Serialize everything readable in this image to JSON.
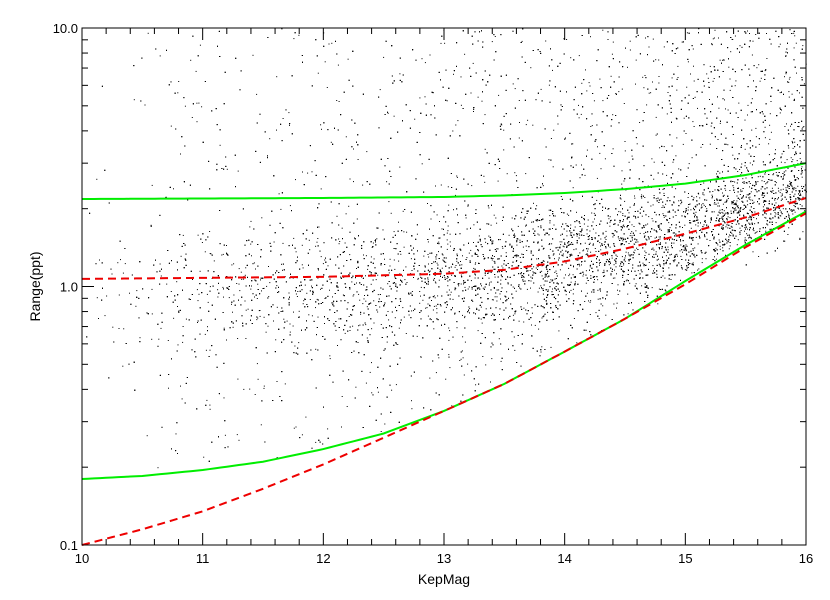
{
  "chart_data": {
    "type": "scatter",
    "title": "",
    "xlabel": "KepMag",
    "ylabel": "Range(ppt)",
    "xlim": [
      10,
      16
    ],
    "ylim": [
      0.1,
      10.0
    ],
    "yscale": "log",
    "grid": false,
    "legend": "none",
    "x_ticks": [
      10,
      11,
      12,
      13,
      14,
      15,
      16
    ],
    "x_tick_labels": [
      "10",
      "11",
      "12",
      "13",
      "14",
      "15",
      "16"
    ],
    "y_ticks": [
      0.1,
      1.0,
      10.0
    ],
    "y_tick_labels": [
      "0.1",
      "1.0",
      "10.0"
    ],
    "point_color": "#000000",
    "curves": [
      {
        "style": "solid",
        "color": "#00ee00",
        "x": [
          10,
          11,
          12,
          13,
          13.5,
          14,
          14.5,
          15,
          15.5,
          16
        ],
        "y": [
          2.18,
          2.19,
          2.2,
          2.22,
          2.25,
          2.3,
          2.38,
          2.5,
          2.7,
          3.0
        ]
      },
      {
        "style": "dashed",
        "color": "#ee0000",
        "x": [
          10,
          11,
          12,
          13,
          13.5,
          14,
          14.5,
          15,
          15.5,
          16
        ],
        "y": [
          1.07,
          1.08,
          1.09,
          1.12,
          1.16,
          1.25,
          1.4,
          1.6,
          1.85,
          2.2
        ]
      },
      {
        "style": "solid",
        "color": "#00ee00",
        "x": [
          10,
          10.5,
          11,
          11.5,
          12,
          12.5,
          13,
          13.5,
          14,
          14.5,
          15,
          15.5,
          16
        ],
        "y": [
          0.18,
          0.185,
          0.195,
          0.21,
          0.235,
          0.27,
          0.33,
          0.42,
          0.56,
          0.75,
          1.05,
          1.45,
          1.95
        ]
      },
      {
        "style": "dashed",
        "color": "#ee0000",
        "x": [
          10,
          10.5,
          11,
          11.5,
          12,
          12.5,
          13,
          13.5,
          14,
          14.5,
          15,
          15.5,
          16
        ],
        "y": [
          0.1,
          0.115,
          0.135,
          0.165,
          0.205,
          0.26,
          0.33,
          0.42,
          0.56,
          0.75,
          1.02,
          1.42,
          1.92
        ]
      }
    ]
  }
}
